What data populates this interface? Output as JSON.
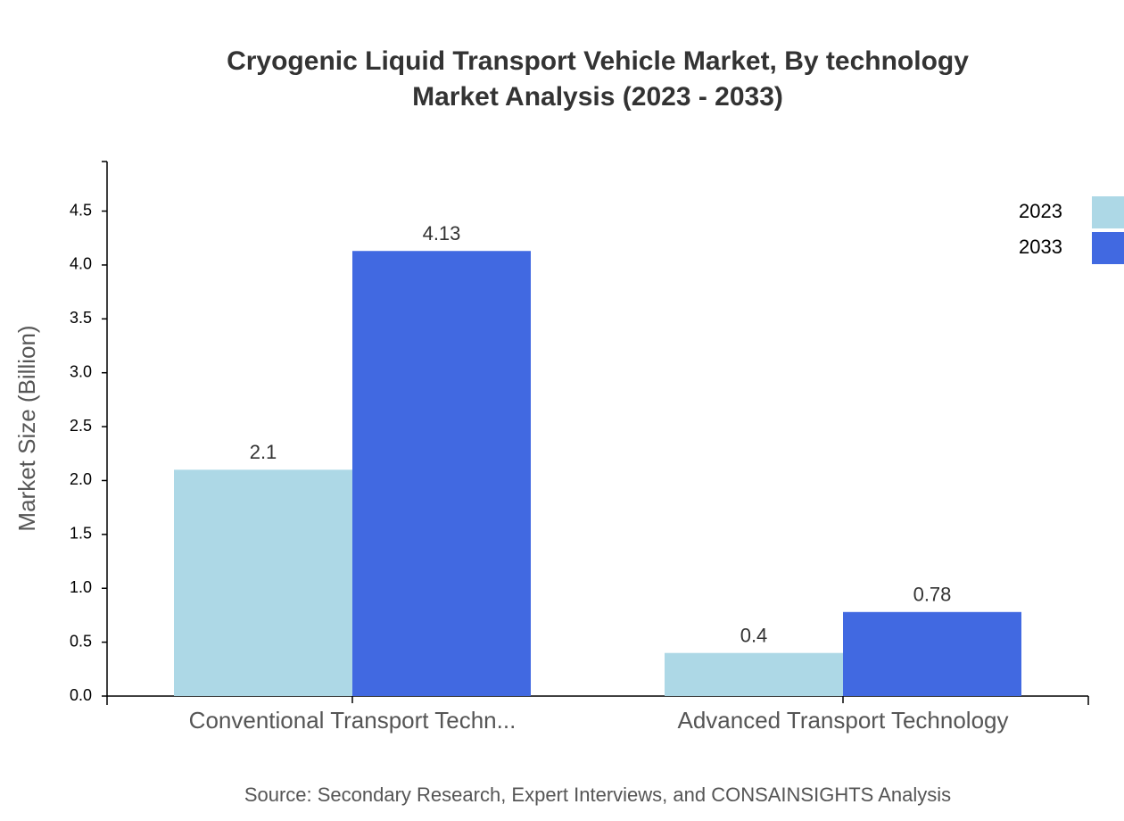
{
  "chart_data": {
    "type": "bar",
    "title": "Cryogenic Liquid Transport Vehicle Market, By technology",
    "subtitle": "Market Analysis (2023 - 2033)",
    "y_label": "Market Size (Billion)",
    "source": "Source: Secondary Research, Expert Interviews, and CONSAINSIGHTS Analysis",
    "categories": [
      "Conventional Transport Techn...",
      "Advanced Transport Technology"
    ],
    "series": [
      {
        "name": "2023",
        "color": "#add8e6",
        "values": [
          2.1,
          0.4
        ]
      },
      {
        "name": "2033",
        "color": "#4169e1",
        "values": [
          4.13,
          0.78
        ]
      }
    ],
    "ylim": [
      0,
      4.96
    ],
    "yticks": [
      {
        "value": 0,
        "label": "0.0"
      },
      0.5,
      {
        "value": 1,
        "label": "1.0"
      },
      1.5,
      {
        "value": 2,
        "label": "2.0"
      },
      2.5,
      {
        "value": 3,
        "label": "3.0"
      },
      3.5,
      {
        "value": 4,
        "label": "4.0"
      },
      4.5
    ],
    "legend": "top-right"
  }
}
